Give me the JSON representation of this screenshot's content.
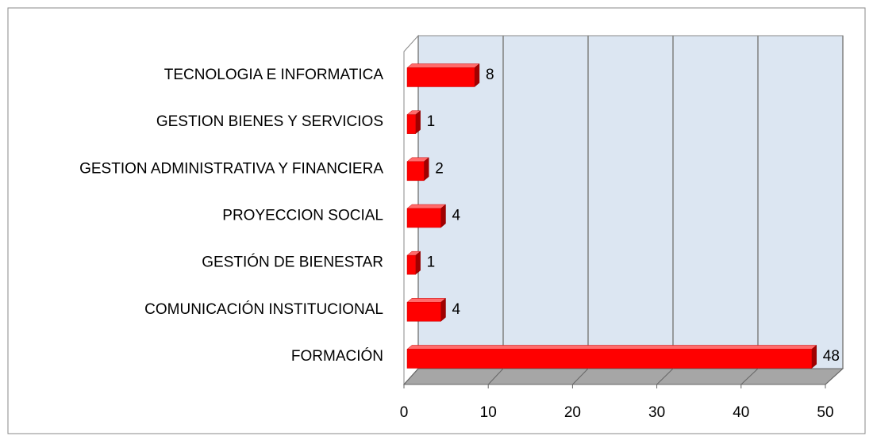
{
  "chart_data": {
    "type": "bar",
    "orientation": "horizontal",
    "categories": [
      "TECNOLOGIA E INFORMATICA",
      "GESTION BIENES Y SERVICIOS",
      "GESTION ADMINISTRATIVA Y FINANCIERA",
      "PROYECCION SOCIAL",
      "GESTIÓN DE BIENESTAR",
      "COMUNICACIÓN INSTITUCIONAL",
      "FORMACIÓN"
    ],
    "values": [
      8,
      1,
      2,
      4,
      1,
      4,
      48
    ],
    "color": "#ff0000",
    "xlim": [
      0,
      50
    ],
    "xticks": [
      0,
      10,
      20,
      30,
      40,
      50
    ],
    "grid": true
  }
}
